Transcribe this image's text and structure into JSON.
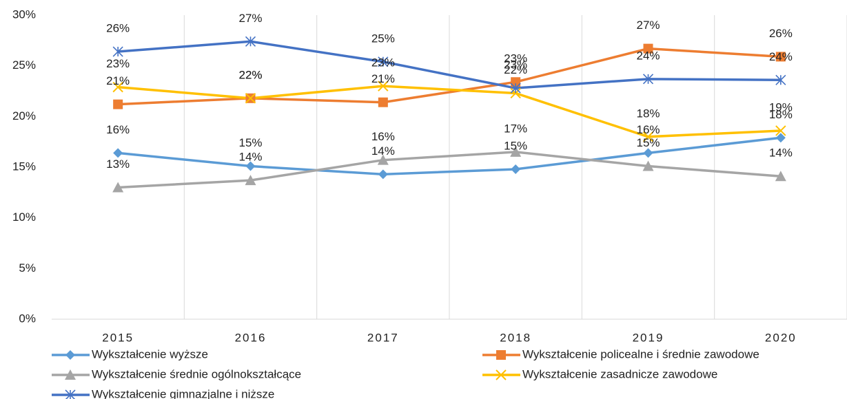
{
  "chart_data": {
    "type": "line",
    "categories": [
      "2015",
      "2016",
      "2017",
      "2018",
      "2019",
      "2020"
    ],
    "ylim": [
      0,
      30
    ],
    "yticks": [
      {
        "value": 0,
        "label": "0%"
      },
      {
        "value": 5,
        "label": "5%"
      },
      {
        "value": 10,
        "label": "10%"
      },
      {
        "value": 15,
        "label": "15%"
      },
      {
        "value": 20,
        "label": "20%"
      },
      {
        "value": 25,
        "label": "25%"
      },
      {
        "value": 30,
        "label": "30%"
      }
    ],
    "grid": "vertical",
    "legend": "bottom",
    "series": [
      {
        "name": "Wykształcenie wyższe",
        "color": "#5B9BD5",
        "marker": "diamond",
        "values": [
          16.4,
          15.1,
          14.3,
          14.8,
          16.4,
          17.9
        ],
        "value_labels": [
          "16%",
          "15%",
          "14%",
          "15%",
          "16%",
          "18%"
        ]
      },
      {
        "name": "Wykształcenie policealne i średnie zawodowe",
        "color": "#ED7D31",
        "marker": "square",
        "values": [
          21.2,
          21.8,
          21.4,
          23.4,
          26.7,
          25.9
        ],
        "value_labels": [
          "21%",
          "22%",
          "21%",
          "23%",
          "27%",
          "26%"
        ]
      },
      {
        "name": "Wykształcenie średnie ogólnokształcące",
        "color": "#A5A5A5",
        "marker": "triangle",
        "values": [
          13.0,
          13.7,
          15.7,
          16.5,
          15.1,
          14.1
        ],
        "value_labels": [
          "13%",
          "14%",
          "16%",
          "17%",
          "15%",
          "14%"
        ]
      },
      {
        "name": "Wykształcenie zasadnicze zawodowe",
        "color": "#FFC000",
        "marker": "x",
        "values": [
          22.9,
          21.8,
          23.0,
          22.3,
          18.0,
          18.6
        ],
        "value_labels": [
          "23%",
          "22%",
          "23%",
          "22%",
          "18%",
          "19%"
        ]
      },
      {
        "name": "Wykształcenie gimnazjalne i niższe",
        "color": "#4472C4",
        "marker": "star",
        "values": [
          26.4,
          27.4,
          25.4,
          22.8,
          23.7,
          23.6
        ],
        "value_labels": [
          "26%",
          "27%",
          "25%",
          "23%",
          "24%",
          "24%"
        ]
      }
    ]
  }
}
